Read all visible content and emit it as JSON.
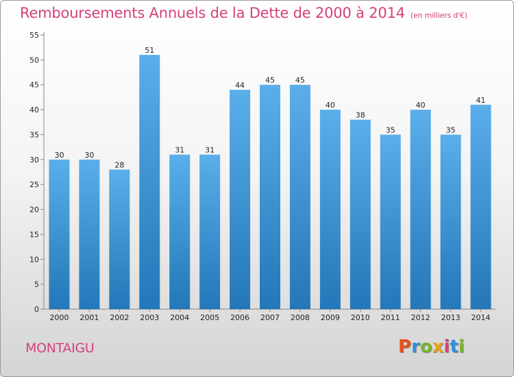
{
  "header": {
    "title": "Remboursements Annuels de la Dette de 2000 à 2014",
    "subtitle": "(en milliers d'€)"
  },
  "footer": {
    "city": "MONTAIGU",
    "logo": "Proxiti"
  },
  "colors": {
    "title": "#d4407a",
    "bar_light": "#5aaeea",
    "bar_dark": "#2477b8",
    "logo_letters": [
      "#e8501e",
      "#2f8fd6",
      "#7ab42c",
      "#e8a014",
      "#d4407a",
      "#2f8fd6",
      "#7ab42c"
    ]
  },
  "chart_data": {
    "type": "bar",
    "categories": [
      "2000",
      "2001",
      "2002",
      "2003",
      "2004",
      "2005",
      "2006",
      "2007",
      "2008",
      "2009",
      "2010",
      "2011",
      "2012",
      "2013",
      "2014"
    ],
    "values": [
      30,
      30,
      28,
      51,
      31,
      31,
      44,
      45,
      45,
      40,
      38,
      35,
      40,
      35,
      41
    ],
    "ylim": [
      0,
      55
    ],
    "yticks": [
      0,
      5,
      10,
      15,
      20,
      25,
      30,
      35,
      40,
      45,
      50,
      55
    ],
    "grid": false,
    "legend": "none"
  }
}
